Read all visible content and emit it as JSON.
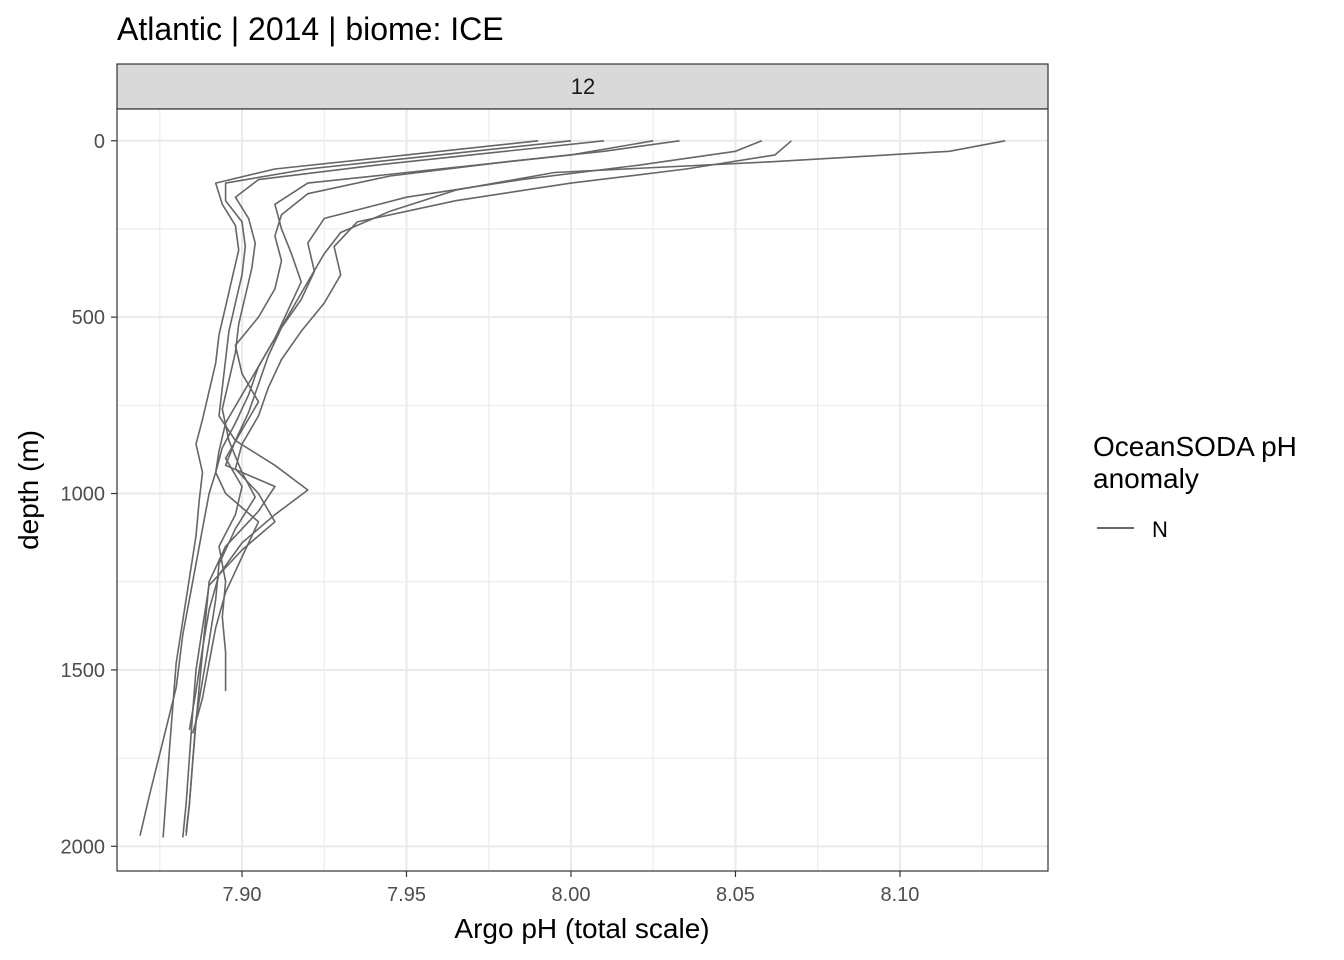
{
  "chart_data": {
    "type": "line",
    "title": "Atlantic | 2014 | biome: ICE",
    "facet_label": "12",
    "xlabel": "Argo pH (total scale)",
    "ylabel": "depth (m)",
    "xlim": [
      7.862,
      8.145
    ],
    "ylim": [
      -90,
      2070
    ],
    "y_reversed": true,
    "x_ticks": [
      {
        "value": 7.9,
        "label": "7.90"
      },
      {
        "value": 7.95,
        "label": "7.95"
      },
      {
        "value": 8.0,
        "label": "8.00"
      },
      {
        "value": 8.05,
        "label": "8.05"
      },
      {
        "value": 8.1,
        "label": "8.10"
      }
    ],
    "y_ticks": [
      {
        "value": 0,
        "label": "0"
      },
      {
        "value": 500,
        "label": "500"
      },
      {
        "value": 1000,
        "label": "1000"
      },
      {
        "value": 1500,
        "label": "1500"
      },
      {
        "value": 2000,
        "label": "2000"
      }
    ],
    "grid": true,
    "legend": {
      "title": "OceanSODA pH\nanomaly",
      "title_lines": [
        "OceanSODA pH",
        "anomaly"
      ],
      "position": "right",
      "entries": [
        {
          "label": "N",
          "color": "#666666"
        }
      ]
    },
    "line_color": "#666666",
    "series": [
      {
        "depth": [
          0,
          30,
          60,
          90,
          140,
          200,
          260,
          320,
          400,
          480,
          560,
          640,
          720,
          800,
          880,
          940,
          1000,
          1100,
          1250,
          1400,
          1550,
          1700,
          1850,
          1970
        ],
        "ph": [
          8.132,
          8.115,
          8.06,
          7.995,
          7.965,
          7.945,
          7.93,
          7.925,
          7.92,
          7.915,
          7.91,
          7.905,
          7.9,
          7.895,
          7.893,
          7.892,
          7.89,
          7.888,
          7.885,
          7.882,
          7.88,
          7.876,
          7.872,
          7.869
        ]
      },
      {
        "depth": [
          0,
          40,
          80,
          120,
          170,
          230,
          300,
          380,
          460,
          540,
          620,
          700,
          780,
          860,
          930,
          1000,
          1080,
          1160,
          1260,
          1380,
          1500,
          1620,
          1750,
          1880,
          1975
        ],
        "ph": [
          8.067,
          8.062,
          8.035,
          8.0,
          7.965,
          7.935,
          7.928,
          7.93,
          7.925,
          7.918,
          7.912,
          7.908,
          7.905,
          7.9,
          7.898,
          7.905,
          7.91,
          7.9,
          7.89,
          7.888,
          7.886,
          7.885,
          7.884,
          7.883,
          7.882
        ]
      },
      {
        "depth": [
          0,
          30,
          70,
          110,
          160,
          220,
          290,
          370,
          450,
          530,
          610,
          690,
          770,
          850,
          920,
          980,
          1050,
          1150,
          1250,
          1350,
          1450,
          1550,
          1650,
          1760,
          1880,
          1970
        ],
        "ph": [
          8.058,
          8.05,
          8.02,
          7.985,
          7.95,
          7.925,
          7.92,
          7.922,
          7.918,
          7.912,
          7.908,
          7.905,
          7.902,
          7.898,
          7.895,
          7.91,
          7.905,
          7.895,
          7.89,
          7.889,
          7.888,
          7.887,
          7.886,
          7.885,
          7.884,
          7.883
        ]
      },
      {
        "depth": [
          0,
          30,
          60,
          100,
          150,
          210,
          270,
          340,
          420,
          500,
          580,
          660,
          740,
          820,
          900,
          980,
          1060,
          1150,
          1250,
          1350,
          1450,
          1560
        ],
        "ph": [
          8.033,
          8.01,
          7.98,
          7.945,
          7.92,
          7.912,
          7.91,
          7.912,
          7.91,
          7.905,
          7.898,
          7.9,
          7.905,
          7.9,
          7.895,
          7.9,
          7.898,
          7.893,
          7.895,
          7.894,
          7.895,
          7.895
        ]
      },
      {
        "depth": [
          0,
          40,
          80,
          120,
          180,
          250,
          320,
          400,
          480,
          560,
          640,
          720,
          800,
          870,
          940,
          1000,
          1080,
          1180,
          1280,
          1380,
          1480,
          1580,
          1680
        ],
        "ph": [
          8.025,
          8.0,
          7.96,
          7.92,
          7.91,
          7.912,
          7.915,
          7.918,
          7.914,
          7.91,
          7.905,
          7.902,
          7.898,
          7.894,
          7.892,
          7.895,
          7.905,
          7.9,
          7.895,
          7.892,
          7.89,
          7.888,
          7.885
        ]
      },
      {
        "depth": [
          0,
          30,
          70,
          110,
          160,
          220,
          290,
          360,
          440,
          520,
          600,
          680,
          760,
          850,
          940,
          1010,
          1100,
          1200,
          1300,
          1420,
          1530,
          1640,
          1760,
          1880,
          1960
        ],
        "ph": [
          8.01,
          7.98,
          7.94,
          7.905,
          7.898,
          7.902,
          7.904,
          7.903,
          7.901,
          7.899,
          7.898,
          7.896,
          7.894,
          7.896,
          7.9,
          7.904,
          7.898,
          7.893,
          7.892,
          7.89,
          7.888,
          7.886,
          7.885,
          7.884,
          7.883
        ]
      },
      {
        "depth": [
          0,
          40,
          80,
          120,
          170,
          230,
          300,
          380,
          460,
          540,
          620,
          700,
          780,
          850,
          920,
          990,
          1060,
          1140,
          1230,
          1330,
          1440,
          1560,
          1670
        ],
        "ph": [
          8.0,
          7.96,
          7.92,
          7.895,
          7.895,
          7.9,
          7.901,
          7.9,
          7.898,
          7.896,
          7.895,
          7.894,
          7.893,
          7.898,
          7.91,
          7.92,
          7.91,
          7.9,
          7.893,
          7.89,
          7.888,
          7.886,
          7.884
        ]
      },
      {
        "depth": [
          0,
          40,
          80,
          120,
          180,
          240,
          310,
          390,
          470,
          550,
          630,
          710,
          790,
          860,
          940,
          1020,
          1120,
          1240,
          1360,
          1480,
          1600,
          1720,
          1850,
          1975
        ],
        "ph": [
          7.99,
          7.95,
          7.91,
          7.892,
          7.894,
          7.898,
          7.899,
          7.897,
          7.895,
          7.893,
          7.892,
          7.89,
          7.888,
          7.886,
          7.888,
          7.887,
          7.886,
          7.884,
          7.882,
          7.88,
          7.879,
          7.878,
          7.877,
          7.876
        ]
      }
    ]
  }
}
